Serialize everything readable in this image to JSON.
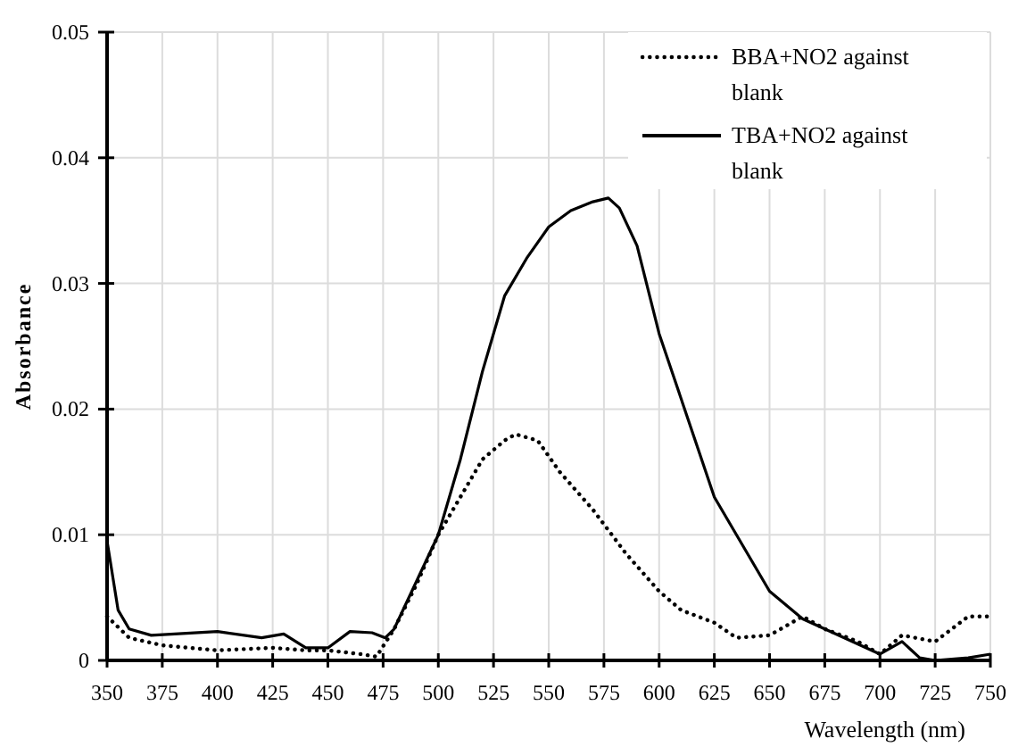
{
  "chart_data": {
    "type": "line",
    "xlabel": "Wavelength (nm)",
    "ylabel": "Absorbance",
    "xlim": [
      350,
      750
    ],
    "ylim": [
      0,
      0.05
    ],
    "xticks": [
      350,
      375,
      400,
      425,
      450,
      475,
      500,
      525,
      550,
      575,
      600,
      625,
      650,
      675,
      700,
      725,
      750
    ],
    "yticks": [
      0,
      0.01,
      0.02,
      0.03,
      0.04,
      0.05
    ],
    "grid": true,
    "legend": "top right",
    "series": [
      {
        "name": "BBA+NO2 against blank",
        "color": "#000000",
        "line_style": "dotted",
        "x": [
          350,
          360,
          375,
          400,
          425,
          440,
          450,
          465,
          472,
          480,
          490,
          500,
          510,
          520,
          530,
          535,
          545,
          555,
          570,
          585,
          600,
          610,
          625,
          635,
          650,
          665,
          675,
          690,
          700,
          710,
          725,
          740,
          750
        ],
        "values": [
          0.0035,
          0.0018,
          0.0012,
          0.0008,
          0.001,
          0.0008,
          0.0008,
          0.0005,
          0.0003,
          0.0025,
          0.006,
          0.01,
          0.013,
          0.016,
          0.0175,
          0.018,
          0.0175,
          0.015,
          0.012,
          0.0085,
          0.0055,
          0.004,
          0.003,
          0.0018,
          0.002,
          0.0035,
          0.0025,
          0.0015,
          0.0005,
          0.002,
          0.0015,
          0.0035,
          0.0035
        ]
      },
      {
        "name": "TBA+NO2 against blank",
        "color": "#000000",
        "line_style": "solid",
        "x": [
          350,
          355,
          360,
          370,
          400,
          420,
          430,
          440,
          450,
          460,
          470,
          476,
          480,
          500,
          510,
          520,
          530,
          540,
          550,
          560,
          570,
          577,
          582,
          590,
          600,
          625,
          650,
          665,
          675,
          700,
          710,
          718,
          725,
          740,
          750
        ],
        "values": [
          0.0095,
          0.004,
          0.0025,
          0.002,
          0.0023,
          0.0018,
          0.0021,
          0.001,
          0.001,
          0.0023,
          0.0022,
          0.0018,
          0.0025,
          0.01,
          0.016,
          0.023,
          0.029,
          0.032,
          0.0345,
          0.0358,
          0.0365,
          0.0368,
          0.036,
          0.033,
          0.026,
          0.013,
          0.0055,
          0.0033,
          0.0025,
          0.0005,
          0.0015,
          0.0002,
          0,
          0.0002,
          0.0005
        ]
      }
    ]
  }
}
